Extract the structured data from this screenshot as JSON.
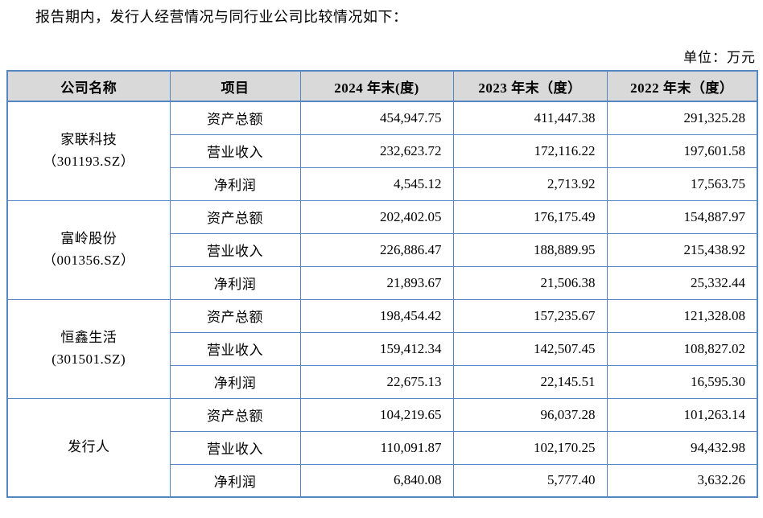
{
  "page": {
    "title": "报告期内，发行人经营情况与同行业公司比较情况如下：",
    "unit_label": "单位：万元"
  },
  "colors": {
    "table_border": "#5585c2",
    "header_background": "#d9d9d9",
    "text": "#000000"
  },
  "table": {
    "headers": [
      "公司名称",
      "项目",
      "2024 年末(度)",
      "2023 年末（度）",
      "2022 年末（度）"
    ],
    "groups": [
      {
        "company_name": "家联科技",
        "company_code": "（301193.SZ）",
        "rows": [
          {
            "item": "资产总额",
            "y2024": "454,947.75",
            "y2023": "411,447.38",
            "y2022": "291,325.28"
          },
          {
            "item": "营业收入",
            "y2024": "232,623.72",
            "y2023": "172,116.22",
            "y2022": "197,601.58"
          },
          {
            "item": "净利润",
            "y2024": "4,545.12",
            "y2023": "2,713.92",
            "y2022": "17,563.75"
          }
        ]
      },
      {
        "company_name": "富岭股份",
        "company_code": "（001356.SZ）",
        "rows": [
          {
            "item": "资产总额",
            "y2024": "202,402.05",
            "y2023": "176,175.49",
            "y2022": "154,887.97"
          },
          {
            "item": "营业收入",
            "y2024": "226,886.47",
            "y2023": "188,889.95",
            "y2022": "215,438.92"
          },
          {
            "item": "净利润",
            "y2024": "21,893.67",
            "y2023": "21,506.38",
            "y2022": "25,332.44"
          }
        ]
      },
      {
        "company_name": "恒鑫生活",
        "company_code": "(301501.SZ)",
        "rows": [
          {
            "item": "资产总额",
            "y2024": "198,454.42",
            "y2023": "157,235.67",
            "y2022": "121,328.08"
          },
          {
            "item": "营业收入",
            "y2024": "159,412.34",
            "y2023": "142,507.45",
            "y2022": "108,827.02"
          },
          {
            "item": "净利润",
            "y2024": "22,675.13",
            "y2023": "22,145.51",
            "y2022": "16,595.30"
          }
        ]
      },
      {
        "company_name": "发行人",
        "company_code": "",
        "rows": [
          {
            "item": "资产总额",
            "y2024": "104,219.65",
            "y2023": "96,037.28",
            "y2022": "101,263.14"
          },
          {
            "item": "营业收入",
            "y2024": "110,091.87",
            "y2023": "102,170.25",
            "y2022": "94,432.98"
          },
          {
            "item": "净利润",
            "y2024": "6,840.08",
            "y2023": "5,777.40",
            "y2022": "3,632.26"
          }
        ]
      }
    ]
  }
}
